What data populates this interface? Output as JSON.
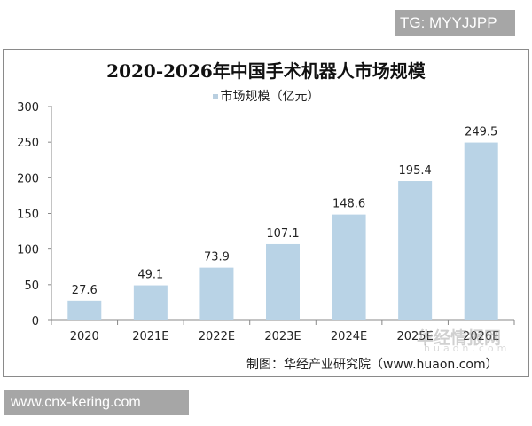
{
  "badge_top": "TG: MYYJJPP",
  "badge_bottom": "www.cnx-kering.com",
  "source": "制图：华经产业研究院（www.huaon.com）",
  "watermark": {
    "cn": "华经情报网",
    "en": "huaon.com"
  },
  "chart_data": {
    "type": "bar",
    "title": "2020-2026年中国手术机器人市场规模",
    "legend": "市场规模（亿元）",
    "legend_position": "top-center",
    "categories": [
      "2020",
      "2021E",
      "2022E",
      "2023E",
      "2024E",
      "2025E",
      "2026E"
    ],
    "values": [
      27.6,
      49.1,
      73.9,
      107.1,
      148.6,
      195.4,
      249.5
    ],
    "value_labels": [
      "27.6",
      "49.1",
      "73.9",
      "107.1",
      "148.6",
      "195.4",
      "249.5"
    ],
    "yticks": [
      "0",
      "50",
      "100",
      "150",
      "200",
      "250",
      "300"
    ],
    "ylim": [
      0,
      300
    ],
    "xlabel": "",
    "ylabel": "",
    "grid": false,
    "color": "#b9d3e6"
  }
}
